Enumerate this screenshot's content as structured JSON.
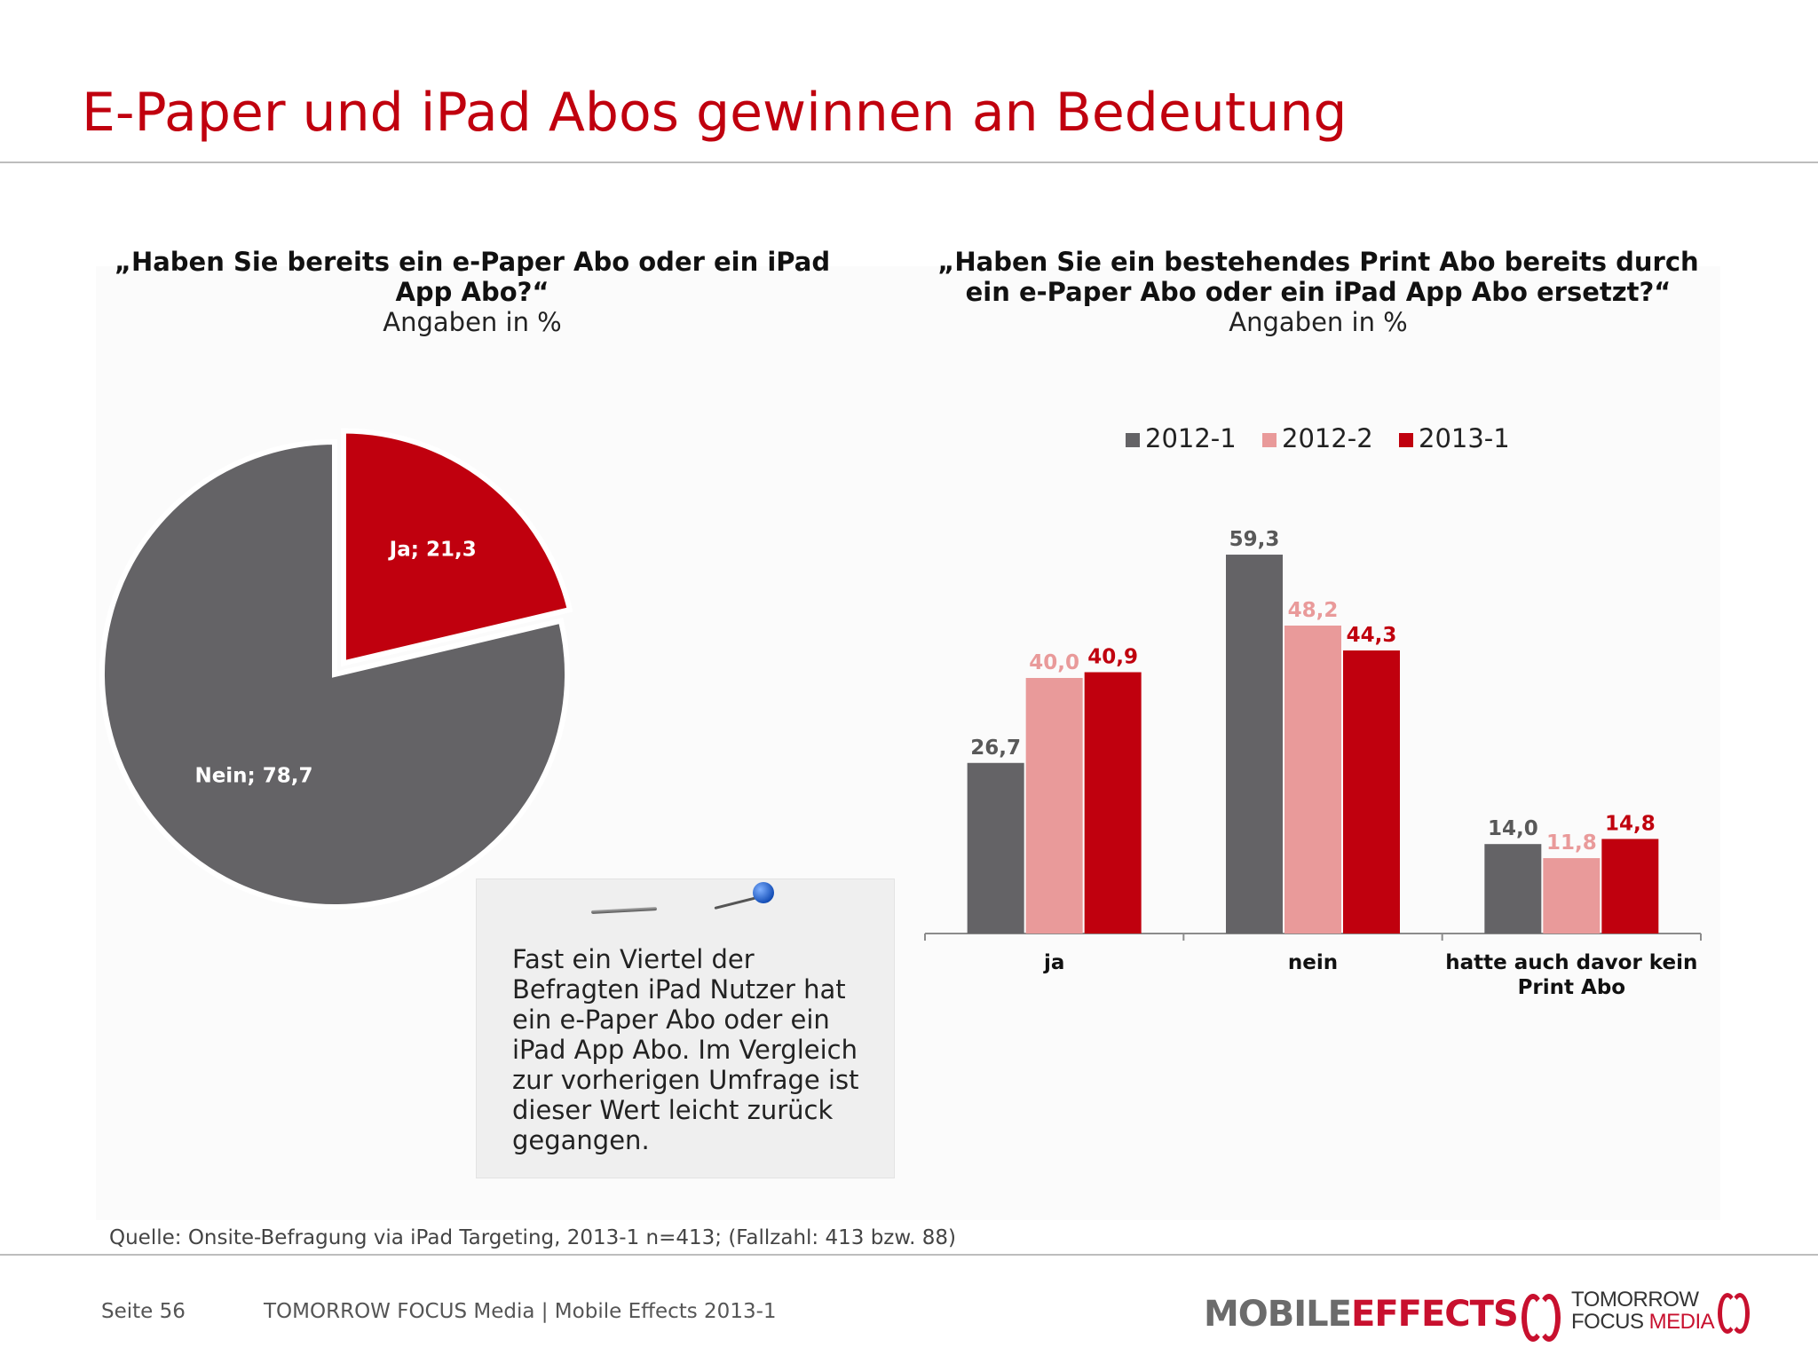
{
  "title": "E-Paper und iPad Abos gewinnen an Bedeutung",
  "colors": {
    "brand_red": "#c0000e",
    "series_2012_1": "#646366",
    "series_2012_2": "#e99a9a",
    "series_2013_1": "#c0000e",
    "pie_nein": "#646366",
    "pie_ja": "#c0000e"
  },
  "left_question": {
    "text": "„Haben Sie bereits ein e-Paper Abo oder ein iPad App Abo?“",
    "sub": "Angaben in %"
  },
  "right_question": {
    "text": "„Haben Sie ein bestehendes Print Abo bereits durch ein e-Paper Abo oder ein iPad App Abo ersetzt?“",
    "sub": "Angaben in %"
  },
  "chart_data": [
    {
      "type": "pie",
      "slices": [
        {
          "label": "Ja",
          "value": 21.3,
          "label_text": "Ja; 21,3",
          "color": "#c0000e",
          "exploded": true
        },
        {
          "label": "Nein",
          "value": 78.7,
          "label_text": "Nein; 78,7",
          "color": "#646366",
          "exploded": false
        }
      ]
    },
    {
      "type": "bar",
      "categories": [
        "ja",
        "nein",
        "hatte auch davor kein Print Abo"
      ],
      "series": [
        {
          "name": "2012-1",
          "values": [
            26.7,
            59.3,
            14.0
          ],
          "labels": [
            "26,7",
            "59,3",
            "14,0"
          ],
          "color": "#646366",
          "label_color": "#595959"
        },
        {
          "name": "2012-2",
          "values": [
            40.0,
            48.2,
            11.8
          ],
          "labels": [
            "40,0",
            "48,2",
            "11,8"
          ],
          "color": "#e99a9a",
          "label_color": "#e99a9a"
        },
        {
          "name": "2013-1",
          "values": [
            40.9,
            44.3,
            14.8
          ],
          "labels": [
            "40,9",
            "44,3",
            "14,8"
          ],
          "color": "#c0000e",
          "label_color": "#c0000e"
        }
      ],
      "legend_position": "top"
    }
  ],
  "note": {
    "text": "Fast ein Viertel der Befragten iPad Nutzer hat ein e-Paper Abo oder ein iPad App Abo. Im Vergleich zur vorherigen Umfrage ist dieser Wert leicht zurück gegangen."
  },
  "source": "Quelle: Onsite-Befragung via iPad Targeting, 2013-1 n=413; (Fallzahl: 413 bzw. 88)",
  "footer": {
    "page": "Seite 56",
    "company": "TOMORROW FOCUS Media  |  Mobile Effects 2013-1"
  },
  "logos": {
    "mobile_effects": "MOBILE EFFECTS",
    "tomorrow_focus": "TOMORROW FOCUS MEDIA"
  }
}
